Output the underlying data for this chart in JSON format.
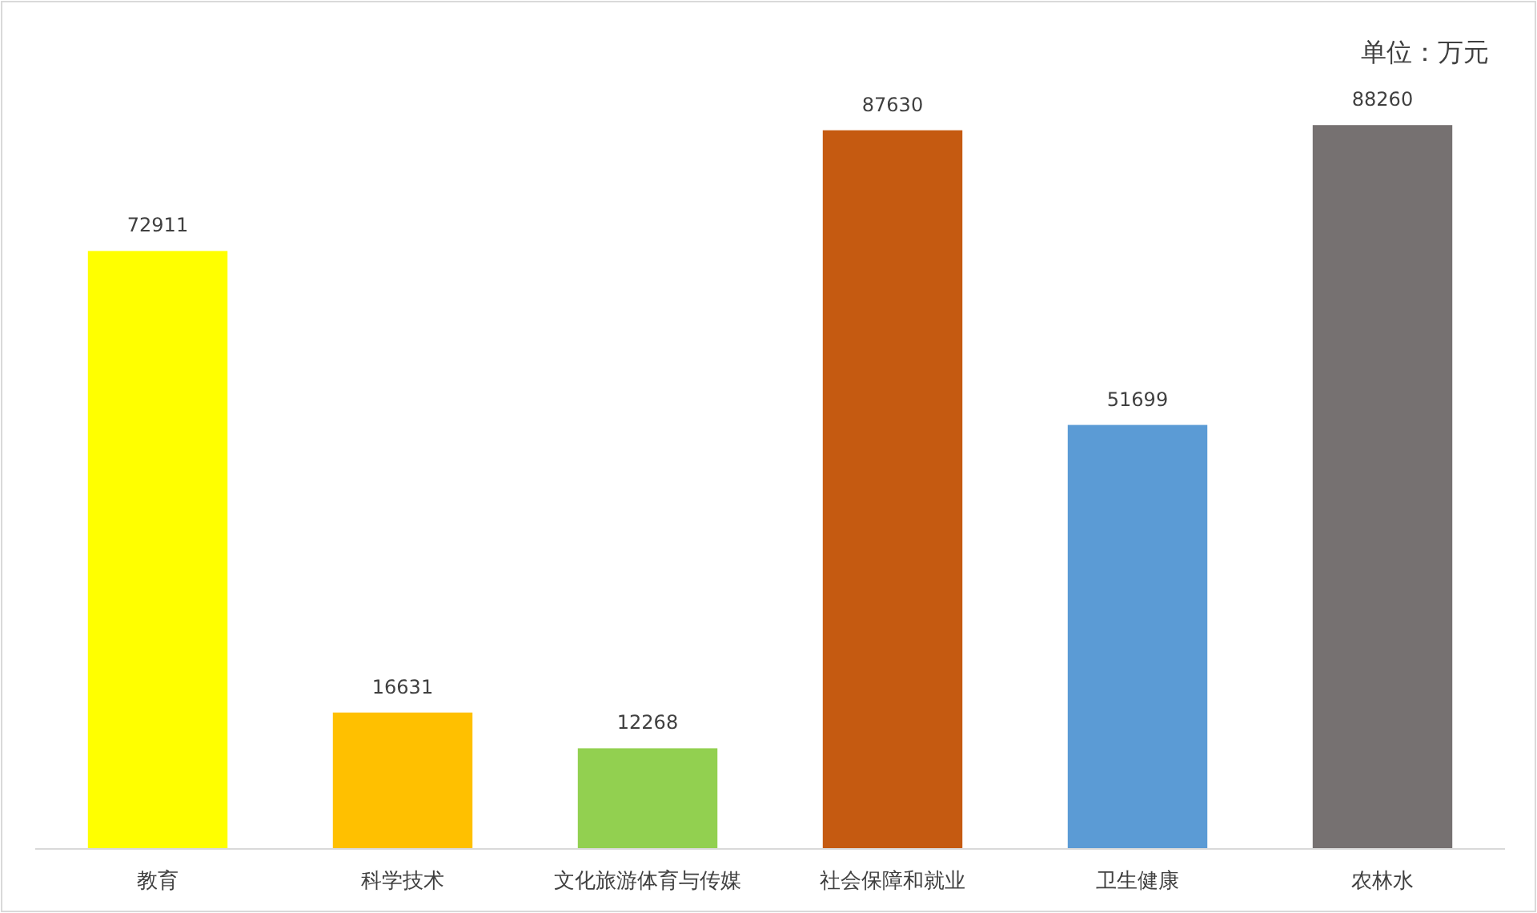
{
  "chart_data": {
    "type": "bar",
    "categories": [
      "教育",
      "科学技术",
      "文化旅游体育与传媒",
      "社会保障和就业",
      "卫生健康",
      "农林水"
    ],
    "values": [
      72911,
      16631,
      12268,
      87630,
      51699,
      88260
    ],
    "colors": [
      "#ffff00",
      "#ffc000",
      "#92d050",
      "#c55a11",
      "#5b9bd5",
      "#767171"
    ],
    "data_labels": true,
    "annotations": [
      "单位：万元"
    ]
  }
}
